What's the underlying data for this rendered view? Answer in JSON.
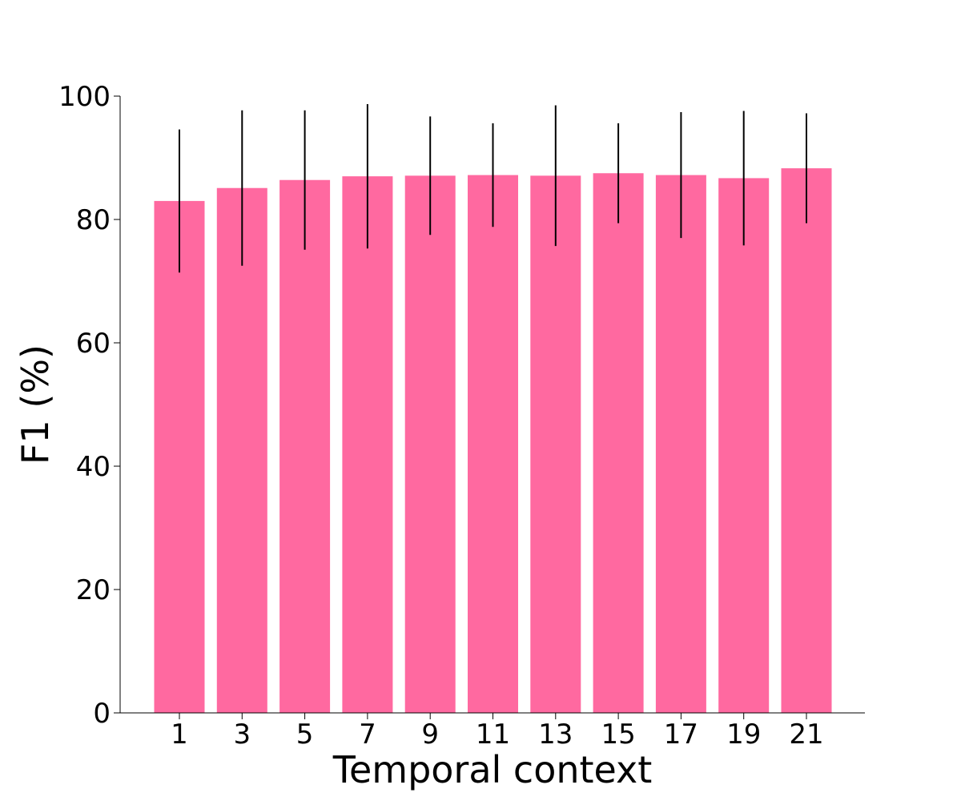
{
  "chart_data": {
    "type": "bar",
    "title": "",
    "xlabel": "Temporal context",
    "ylabel": "F1 (%)",
    "categories": [
      "1",
      "3",
      "5",
      "7",
      "9",
      "11",
      "13",
      "15",
      "17",
      "19",
      "21"
    ],
    "values": [
      83.0,
      85.1,
      86.4,
      87.0,
      87.1,
      87.2,
      87.1,
      87.5,
      87.2,
      86.7,
      88.3
    ],
    "error": [
      11.6,
      12.6,
      11.3,
      11.7,
      9.6,
      8.4,
      11.4,
      8.1,
      10.2,
      10.9,
      8.9
    ],
    "ylim": [
      0,
      100
    ],
    "yticks": [
      0,
      20,
      40,
      60,
      80,
      100
    ],
    "grid": false,
    "bar_color": "#ff69a0",
    "error_color": "#000000"
  }
}
